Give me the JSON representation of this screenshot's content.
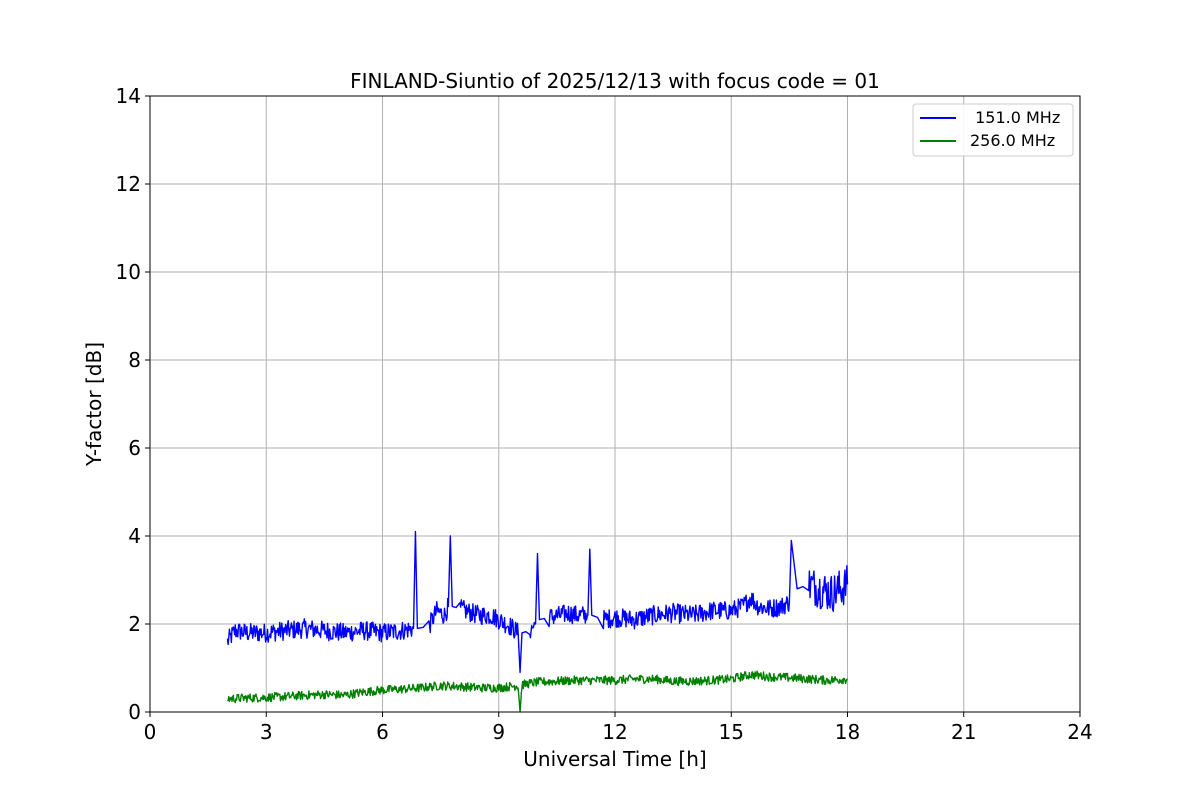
{
  "chart_data": {
    "type": "line",
    "title": "FINLAND-Siuntio of 2025/12/13 with focus code = 01",
    "xlabel": "Universal Time [h]",
    "ylabel": "Y-factor [dB]",
    "xlim": [
      0,
      24
    ],
    "ylim": [
      0,
      14
    ],
    "xticks": [
      0,
      3,
      6,
      9,
      12,
      15,
      18,
      21,
      24
    ],
    "yticks": [
      0,
      2,
      4,
      6,
      8,
      10,
      12,
      14
    ],
    "grid": true,
    "legend_position": "top-right",
    "series": [
      {
        "name": " 151.0 MHz",
        "color": "#0000ff",
        "x": [
          2.0,
          2.2,
          2.5,
          3.0,
          3.5,
          4.0,
          4.5,
          5.0,
          5.5,
          6.0,
          6.5,
          6.8,
          6.85,
          6.9,
          7.2,
          7.4,
          7.6,
          7.7,
          7.75,
          7.8,
          8.0,
          8.3,
          8.5,
          8.8,
          9.0,
          9.3,
          9.5,
          9.55,
          9.6,
          9.8,
          9.95,
          10.0,
          10.05,
          10.3,
          10.6,
          10.8,
          11.0,
          11.3,
          11.35,
          11.4,
          11.7,
          12.0,
          12.5,
          13.0,
          13.5,
          14.0,
          14.5,
          15.0,
          15.3,
          15.5,
          15.7,
          16.0,
          16.3,
          16.5,
          16.55,
          16.7,
          17.0,
          17.3,
          17.6,
          18.0
        ],
        "y": [
          1.6,
          1.85,
          1.8,
          1.8,
          1.85,
          1.9,
          1.85,
          1.8,
          1.85,
          1.8,
          1.85,
          1.9,
          4.1,
          1.9,
          1.95,
          2.3,
          2.2,
          2.4,
          4.0,
          2.4,
          2.35,
          2.25,
          2.2,
          2.2,
          2.1,
          1.95,
          1.8,
          0.9,
          1.8,
          1.85,
          2.0,
          3.6,
          2.1,
          2.15,
          2.2,
          2.25,
          2.2,
          2.2,
          3.7,
          2.2,
          2.1,
          2.15,
          2.1,
          2.2,
          2.25,
          2.2,
          2.3,
          2.3,
          2.4,
          2.6,
          2.4,
          2.35,
          2.4,
          2.5,
          3.9,
          2.8,
          2.9,
          2.8,
          2.7,
          2.9
        ]
      },
      {
        "name": "256.0 MHz",
        "color": "#008000",
        "x": [
          2.0,
          2.5,
          3.0,
          3.5,
          4.0,
          4.5,
          5.0,
          5.5,
          6.0,
          6.5,
          7.0,
          7.5,
          8.0,
          8.5,
          9.0,
          9.5,
          9.55,
          9.6,
          10.0,
          10.5,
          11.0,
          11.5,
          12.0,
          12.5,
          13.0,
          13.5,
          14.0,
          14.5,
          15.0,
          15.5,
          16.0,
          16.5,
          17.0,
          17.5,
          18.0
        ],
        "y": [
          0.3,
          0.32,
          0.33,
          0.35,
          0.38,
          0.4,
          0.38,
          0.45,
          0.5,
          0.52,
          0.55,
          0.6,
          0.58,
          0.55,
          0.55,
          0.6,
          0.0,
          0.62,
          0.68,
          0.7,
          0.72,
          0.72,
          0.72,
          0.75,
          0.75,
          0.7,
          0.7,
          0.72,
          0.75,
          0.85,
          0.8,
          0.78,
          0.75,
          0.72,
          0.75
        ]
      }
    ]
  }
}
